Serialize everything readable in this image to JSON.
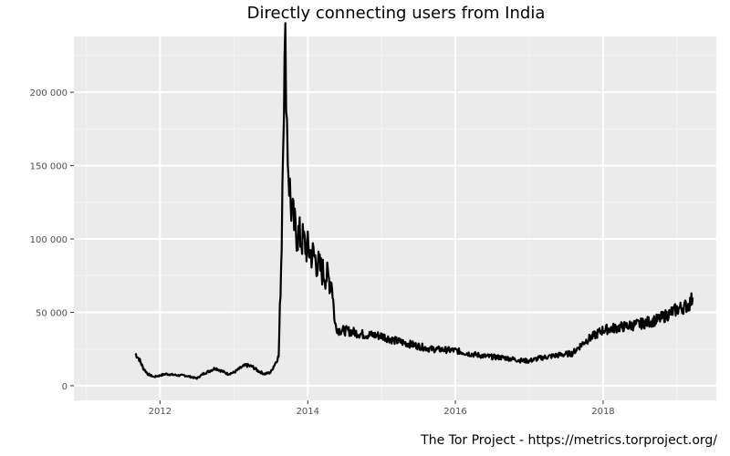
{
  "caption": "The Tor Project - https://metrics.torproject.org/",
  "chart_data": {
    "type": "line",
    "title": "Directly connecting users from India",
    "xlabel": "",
    "ylabel": "",
    "grid": true,
    "ylim": [
      -10000,
      238000
    ],
    "xlim": [
      "2010-11-01",
      "2019-07-15"
    ],
    "y_ticks": [
      0,
      50000,
      100000,
      150000,
      200000
    ],
    "y_tick_labels": [
      "0",
      "50 000",
      "100 000",
      "150 000",
      "200 000"
    ],
    "x_ticks": [
      "2012-01-01",
      "2014-01-01",
      "2016-01-01",
      "2018-01-01"
    ],
    "x_tick_labels": [
      "2012",
      "2014",
      "2016",
      "2018"
    ],
    "colors": {
      "panel": "#ebebeb",
      "grid": "#ffffff",
      "line": "#000000"
    },
    "series": [
      {
        "x": [
          "2011-09-01",
          "2011-09-20",
          "2011-10-10",
          "2011-11-01",
          "2011-12-01",
          "2012-01-01",
          "2012-02-01",
          "2012-03-01",
          "2012-04-01",
          "2012-05-01",
          "2012-06-01",
          "2012-07-01",
          "2012-08-01",
          "2012-09-01",
          "2012-10-01",
          "2012-11-01",
          "2012-12-01",
          "2013-01-01",
          "2013-02-01",
          "2013-03-01",
          "2013-04-01",
          "2013-05-01",
          "2013-06-01",
          "2013-07-01",
          "2013-08-10",
          "2013-08-25",
          "2013-09-01",
          "2013-09-05",
          "2013-09-08",
          "2013-09-12",
          "2013-09-16",
          "2013-09-20",
          "2013-09-24",
          "2013-10-01",
          "2013-10-08",
          "2013-10-15",
          "2013-10-22",
          "2013-11-01",
          "2013-12-01",
          "2014-01-01",
          "2014-02-01",
          "2014-03-01",
          "2014-04-01",
          "2014-05-01",
          "2014-05-15",
          "2014-06-01",
          "2014-08-01",
          "2014-10-01",
          "2015-01-01",
          "2015-03-01",
          "2015-06-01",
          "2015-09-01",
          "2016-01-01",
          "2016-03-01",
          "2016-06-01",
          "2016-09-01",
          "2016-12-01",
          "2017-01-01",
          "2017-03-01",
          "2017-06-01",
          "2017-08-01",
          "2017-10-01",
          "2018-01-01",
          "2018-04-01",
          "2018-07-01",
          "2018-10-01",
          "2019-01-01",
          "2019-03-01",
          "2019-03-20"
        ],
        "values": [
          22000,
          18000,
          12000,
          8000,
          6000,
          7000,
          8000,
          7500,
          7000,
          7000,
          6000,
          5000,
          8000,
          10000,
          12000,
          10000,
          8000,
          9000,
          12000,
          14000,
          13000,
          10000,
          8000,
          9000,
          20000,
          100000,
          185000,
          205000,
          210000,
          225000,
          215000,
          180000,
          160000,
          140000,
          125000,
          118000,
          112000,
          105000,
          100000,
          93000,
          88000,
          80000,
          75000,
          70000,
          42000,
          38000,
          37000,
          35000,
          34000,
          31000,
          28000,
          25000,
          24000,
          22000,
          20000,
          19000,
          17000,
          17000,
          19000,
          21000,
          22000,
          30000,
          38000,
          40000,
          42000,
          45000,
          52000,
          55000,
          60000
        ]
      }
    ]
  }
}
